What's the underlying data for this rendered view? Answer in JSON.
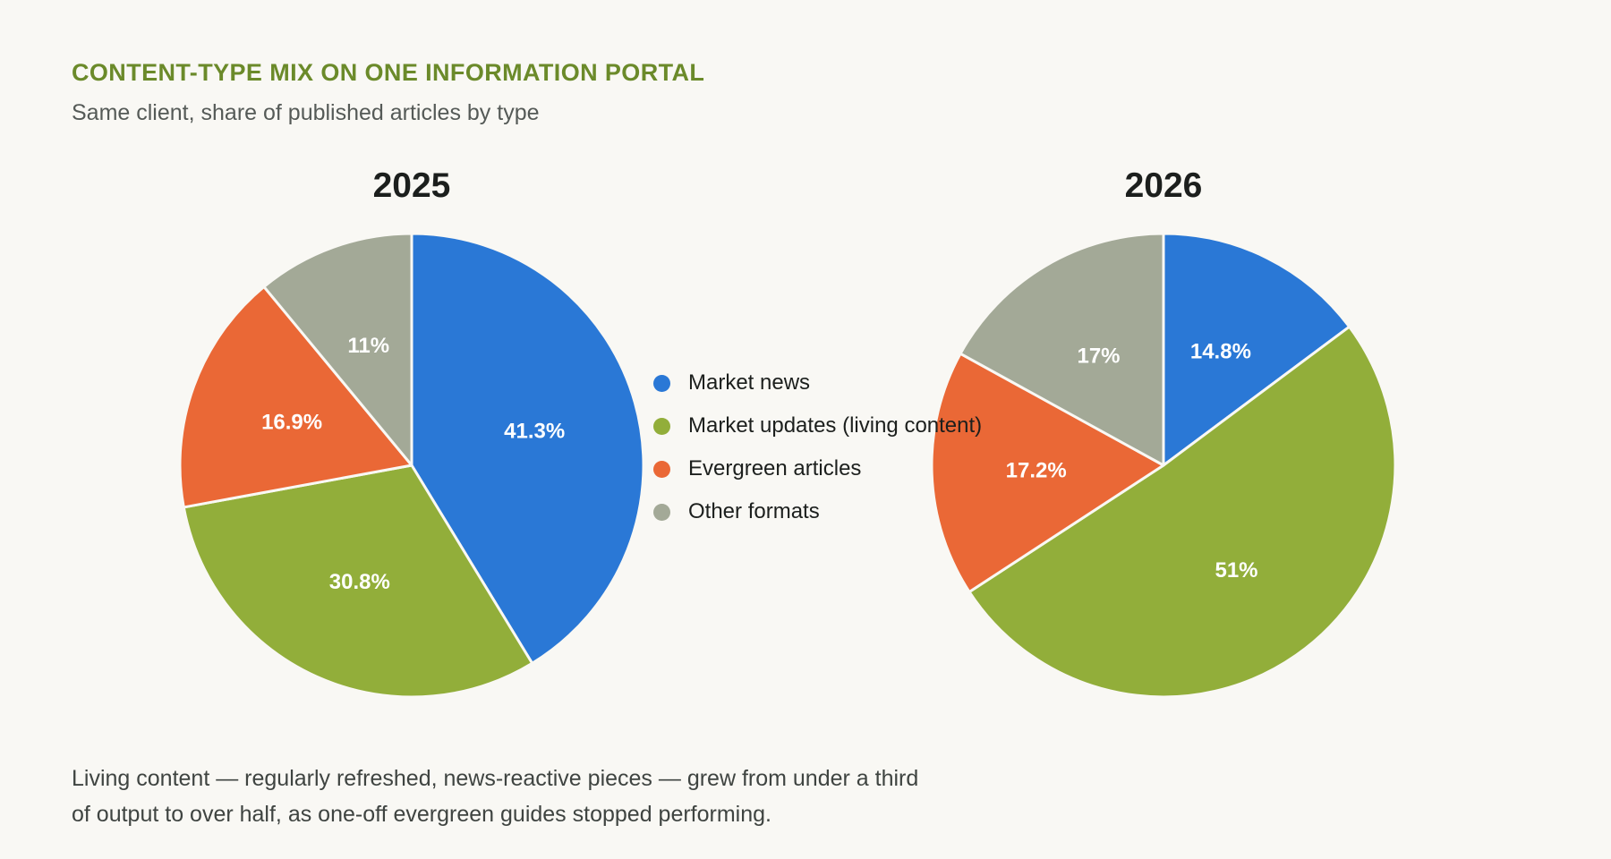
{
  "header": {
    "title": "CONTENT-TYPE MIX ON ONE INFORMATION PORTAL",
    "subtitle": "Same client, share of published articles by type"
  },
  "footnote": "Living content — regularly refreshed, news-reactive pieces — grew from under a third of output to over half, as one-off evergreen guides stopped performing.",
  "colors": {
    "title": "#6b8a2a",
    "slice_border": "#f9f8f4"
  },
  "legend": {
    "placement": "center",
    "items": [
      {
        "label": "Market news",
        "color": "#2a78d6"
      },
      {
        "label": "Market updates (living content)",
        "color": "#92ae3a"
      },
      {
        "label": "Evergreen articles",
        "color": "#ea6836"
      },
      {
        "label": "Other formats",
        "color": "#a3a997"
      }
    ]
  },
  "chart_data": [
    {
      "type": "pie",
      "title": "2025",
      "categories": [
        "Market news",
        "Market updates (living content)",
        "Evergreen articles",
        "Other formats"
      ],
      "values": [
        41.3,
        30.8,
        16.9,
        11
      ],
      "labels": [
        "41.3%",
        "30.8%",
        "16.9%",
        "11%"
      ],
      "colors": [
        "#2a78d6",
        "#92ae3a",
        "#ea6836",
        "#a3a997"
      ],
      "start": "12 o'clock",
      "direction": "clockwise"
    },
    {
      "type": "pie",
      "title": "2026",
      "categories": [
        "Market news",
        "Market updates (living content)",
        "Evergreen articles",
        "Other formats"
      ],
      "values": [
        14.8,
        51,
        17.2,
        17
      ],
      "labels": [
        "14.8%",
        "51%",
        "17.2%",
        "17%"
      ],
      "colors": [
        "#2a78d6",
        "#92ae3a",
        "#ea6836",
        "#a3a997"
      ],
      "start": "12 o'clock",
      "direction": "clockwise"
    }
  ]
}
